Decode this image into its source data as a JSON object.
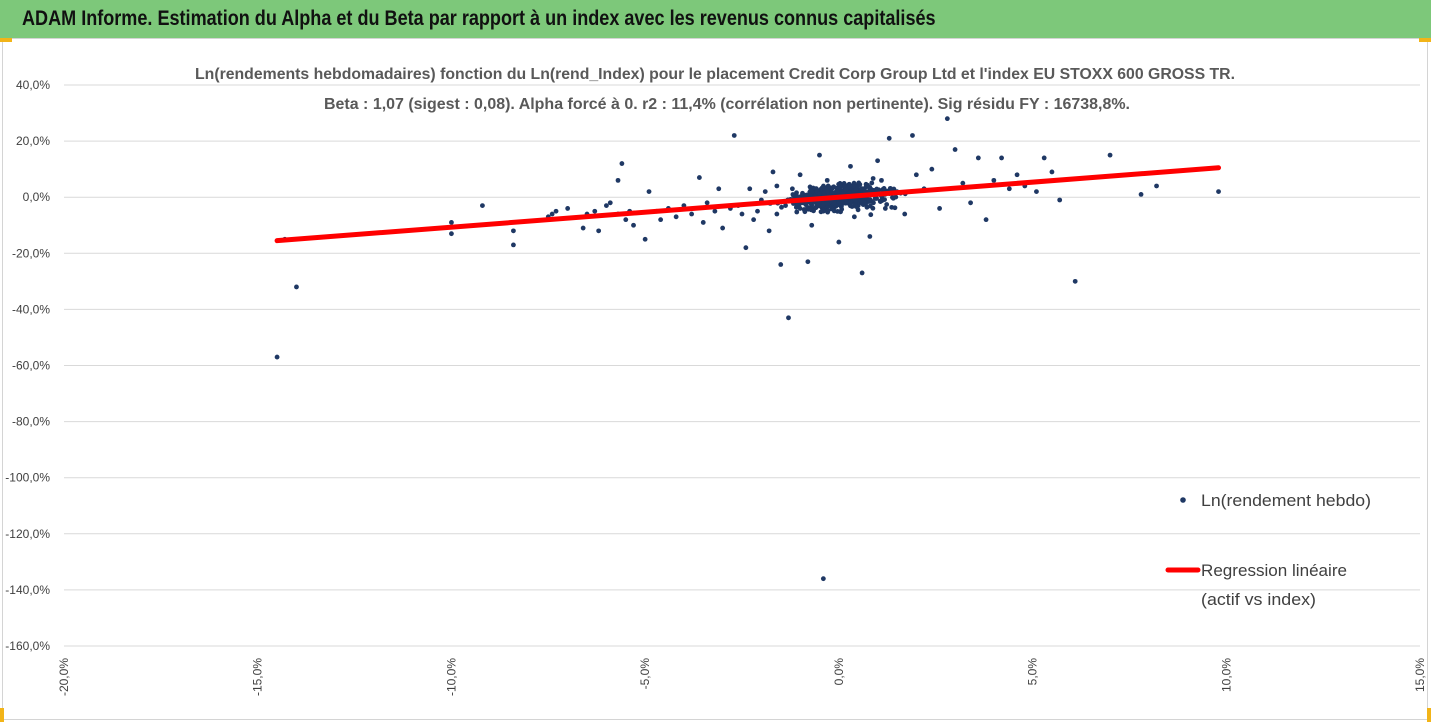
{
  "header": {
    "title": "ADAM Informe. Estimation du Alpha et du Beta par rapport à un index avec les revenus connus capitalisés"
  },
  "colors": {
    "header_bg": "#7dc87a",
    "corner_accent": "#f2b418",
    "points": "#1f3864",
    "regression": "#ff0000",
    "gridline": "#d9d9d9"
  },
  "chart_data": {
    "type": "scatter",
    "title_line1": "Ln(rendements hebdomadaires) fonction du Ln(rend_Index) pour le placement Credit Corp Group Ltd et l'index EU STOXX 600 GROSS TR.",
    "title_line2": "Beta : 1,07 (sigest : 0,08). Alpha forcé à 0. r2 : 11,4% (corrélation non pertinente). Sig résidu FY : 16738,8%.",
    "xlim": [
      -0.2,
      0.15
    ],
    "ylim": [
      -1.6,
      0.4
    ],
    "x_ticks": [
      "-20,0%",
      "-15,0%",
      "-10,0%",
      "-5,0%",
      "0,0%",
      "5,0%",
      "10,0%",
      "15,0%"
    ],
    "y_ticks": [
      "40,0%",
      "20,0%",
      "0,0%",
      "-20,0%",
      "-40,0%",
      "-60,0%",
      "-80,0%",
      "-100,0%",
      "-120,0%",
      "-140,0%",
      "-160,0%"
    ],
    "grid": "horizontal",
    "legend_position": "right",
    "series": [
      {
        "name": "Ln(rendement hebdo)",
        "kind": "points",
        "points": [
          [
            -0.145,
            -0.57
          ],
          [
            -0.14,
            -0.32
          ],
          [
            -0.143,
            -0.15
          ],
          [
            -0.1,
            -0.13
          ],
          [
            -0.1,
            -0.09
          ],
          [
            -0.084,
            -0.17
          ],
          [
            -0.084,
            -0.12
          ],
          [
            -0.092,
            -0.03
          ],
          [
            -0.075,
            -0.07
          ],
          [
            -0.074,
            -0.06
          ],
          [
            -0.073,
            -0.05
          ],
          [
            -0.07,
            -0.04
          ],
          [
            -0.066,
            -0.11
          ],
          [
            -0.065,
            -0.06
          ],
          [
            -0.063,
            -0.05
          ],
          [
            -0.062,
            -0.12
          ],
          [
            -0.06,
            -0.03
          ],
          [
            -0.059,
            -0.02
          ],
          [
            -0.057,
            -0.06
          ],
          [
            -0.057,
            0.06
          ],
          [
            -0.056,
            0.12
          ],
          [
            -0.055,
            -0.08
          ],
          [
            -0.054,
            -0.05
          ],
          [
            -0.053,
            -0.1
          ],
          [
            -0.05,
            -0.15
          ],
          [
            -0.049,
            0.02
          ],
          [
            -0.047,
            -0.05
          ],
          [
            -0.046,
            -0.08
          ],
          [
            -0.044,
            -0.04
          ],
          [
            -0.042,
            -0.07
          ],
          [
            -0.04,
            -0.03
          ],
          [
            -0.038,
            -0.06
          ],
          [
            -0.036,
            0.07
          ],
          [
            -0.035,
            -0.09
          ],
          [
            -0.034,
            -0.02
          ],
          [
            -0.032,
            -0.05
          ],
          [
            -0.031,
            0.03
          ],
          [
            -0.03,
            -0.11
          ],
          [
            -0.028,
            -0.04
          ],
          [
            -0.027,
            0.22
          ],
          [
            -0.026,
            -0.03
          ],
          [
            -0.025,
            -0.06
          ],
          [
            -0.024,
            -0.18
          ],
          [
            -0.023,
            0.03
          ],
          [
            -0.022,
            -0.08
          ],
          [
            -0.021,
            -0.05
          ],
          [
            -0.02,
            -0.01
          ],
          [
            -0.019,
            0.02
          ],
          [
            -0.018,
            -0.12
          ],
          [
            -0.017,
            0.09
          ],
          [
            -0.016,
            -0.06
          ],
          [
            -0.016,
            0.04
          ],
          [
            -0.015,
            -0.24
          ],
          [
            -0.013,
            -0.43
          ],
          [
            -0.012,
            0.03
          ],
          [
            -0.01,
            -0.04
          ],
          [
            -0.01,
            0.08
          ],
          [
            -0.009,
            -0.01
          ],
          [
            -0.008,
            -0.23
          ],
          [
            -0.007,
            -0.1
          ],
          [
            -0.006,
            0.03
          ],
          [
            -0.005,
            0.15
          ],
          [
            -0.004,
            -0.05
          ],
          [
            -0.003,
            0.06
          ],
          [
            -0.002,
            -0.02
          ],
          [
            -0.004,
            -1.36
          ],
          [
            0.0,
            -0.16
          ],
          [
            0.002,
            0.02
          ],
          [
            0.003,
            0.11
          ],
          [
            0.004,
            -0.07
          ],
          [
            0.005,
            -0.03
          ],
          [
            0.006,
            -0.27
          ],
          [
            0.008,
            -0.14
          ],
          [
            0.01,
            0.13
          ],
          [
            0.011,
            0.06
          ],
          [
            0.012,
            -0.04
          ],
          [
            0.013,
            0.21
          ],
          [
            0.015,
            0.02
          ],
          [
            0.017,
            -0.06
          ],
          [
            0.019,
            0.22
          ],
          [
            0.02,
            0.08
          ],
          [
            0.022,
            0.03
          ],
          [
            0.024,
            0.1
          ],
          [
            0.026,
            -0.04
          ],
          [
            0.028,
            0.28
          ],
          [
            0.03,
            0.17
          ],
          [
            0.032,
            0.05
          ],
          [
            0.034,
            -0.02
          ],
          [
            0.036,
            0.14
          ],
          [
            0.038,
            -0.08
          ],
          [
            0.04,
            0.06
          ],
          [
            0.042,
            0.14
          ],
          [
            0.044,
            0.03
          ],
          [
            0.046,
            0.08
          ],
          [
            0.048,
            0.04
          ],
          [
            0.051,
            0.02
          ],
          [
            0.053,
            0.14
          ],
          [
            0.055,
            0.09
          ],
          [
            0.057,
            -0.01
          ],
          [
            0.061,
            -0.3
          ],
          [
            0.07,
            0.15
          ],
          [
            0.078,
            0.01
          ],
          [
            0.082,
            0.04
          ],
          [
            0.098,
            0.02
          ]
        ]
      },
      {
        "name": "Regression linéaire\n(actif vs index)",
        "kind": "line",
        "x": [
          -0.145,
          0.098
        ],
        "y": [
          -0.155,
          0.105
        ]
      }
    ]
  },
  "legend": {
    "points_label": "Ln(rendement hebdo)",
    "line_label_1": "Regression linéaire",
    "line_label_2": "(actif vs index)"
  }
}
